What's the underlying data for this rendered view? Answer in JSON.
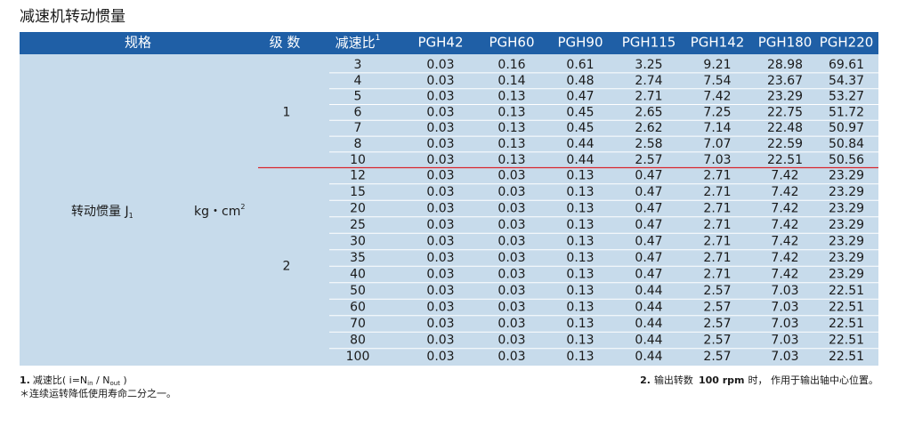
{
  "title": "减速机转动惯量",
  "table": {
    "header": {
      "spec": "规格",
      "stage": "级 数",
      "ratio": "减速比",
      "ratio_note": "1",
      "models": [
        "PGH42",
        "PGH60",
        "PGH90",
        "PGH115",
        "PGH142",
        "PGH180",
        "PGH220"
      ]
    },
    "quantity": {
      "name": "转动惯量 J",
      "subscript": "1",
      "unit": "kg・cm",
      "unit_sup": "2"
    },
    "groups": [
      {
        "stage": "1",
        "rows": [
          [
            "3",
            "0.03",
            "0.16",
            "0.61",
            "3.25",
            "9.21",
            "28.98",
            "69.61"
          ],
          [
            "4",
            "0.03",
            "0.14",
            "0.48",
            "2.74",
            "7.54",
            "23.67",
            "54.37"
          ],
          [
            "5",
            "0.03",
            "0.13",
            "0.47",
            "2.71",
            "7.42",
            "23.29",
            "53.27"
          ],
          [
            "6",
            "0.03",
            "0.13",
            "0.45",
            "2.65",
            "7.25",
            "22.75",
            "51.72"
          ],
          [
            "7",
            "0.03",
            "0.13",
            "0.45",
            "2.62",
            "7.14",
            "22.48",
            "50.97"
          ],
          [
            "8",
            "0.03",
            "0.13",
            "0.44",
            "2.58",
            "7.07",
            "22.59",
            "50.84"
          ],
          [
            "10",
            "0.03",
            "0.13",
            "0.44",
            "2.57",
            "7.03",
            "22.51",
            "50.56"
          ]
        ]
      },
      {
        "stage": "2",
        "rows": [
          [
            "12",
            "0.03",
            "0.03",
            "0.13",
            "0.47",
            "2.71",
            "7.42",
            "23.29"
          ],
          [
            "15",
            "0.03",
            "0.03",
            "0.13",
            "0.47",
            "2.71",
            "7.42",
            "23.29"
          ],
          [
            "20",
            "0.03",
            "0.03",
            "0.13",
            "0.47",
            "2.71",
            "7.42",
            "23.29"
          ],
          [
            "25",
            "0.03",
            "0.03",
            "0.13",
            "0.47",
            "2.71",
            "7.42",
            "23.29"
          ],
          [
            "30",
            "0.03",
            "0.03",
            "0.13",
            "0.47",
            "2.71",
            "7.42",
            "23.29"
          ],
          [
            "35",
            "0.03",
            "0.03",
            "0.13",
            "0.47",
            "2.71",
            "7.42",
            "23.29"
          ],
          [
            "40",
            "0.03",
            "0.03",
            "0.13",
            "0.47",
            "2.71",
            "7.42",
            "23.29"
          ],
          [
            "50",
            "0.03",
            "0.03",
            "0.13",
            "0.44",
            "2.57",
            "7.03",
            "22.51"
          ],
          [
            "60",
            "0.03",
            "0.03",
            "0.13",
            "0.44",
            "2.57",
            "7.03",
            "22.51"
          ],
          [
            "70",
            "0.03",
            "0.03",
            "0.13",
            "0.44",
            "2.57",
            "7.03",
            "22.51"
          ],
          [
            "80",
            "0.03",
            "0.03",
            "0.13",
            "0.44",
            "2.57",
            "7.03",
            "22.51"
          ],
          [
            "100",
            "0.03",
            "0.03",
            "0.13",
            "0.44",
            "2.57",
            "7.03",
            "22.51"
          ]
        ]
      }
    ]
  },
  "footnotes": {
    "note1": {
      "number": "1.",
      "text": "减速比( i=N",
      "sub1": "in",
      "mid": " / N",
      "sub2": "out",
      "end": " )"
    },
    "note2": {
      "number": "2.",
      "text": "输出转数",
      "speed": "100 rpm",
      "end": "时， 作用于输出轴中心位置。"
    },
    "note3": "＊连续运转降低使用寿命二分之一。"
  }
}
